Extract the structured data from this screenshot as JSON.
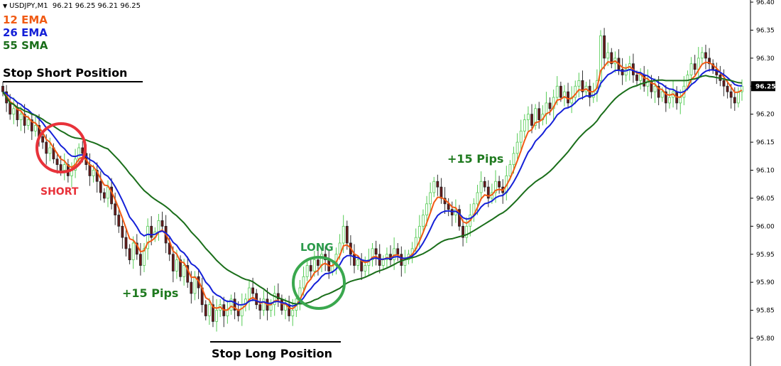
{
  "header": {
    "symbol": "USDJPY,M1",
    "ohlc": "96.21 96.25 96.21 96.25"
  },
  "legend": [
    {
      "label": "12 EMA",
      "color": "#f05a14"
    },
    {
      "label": "26 EMA",
      "color": "#1420d8"
    },
    {
      "label": "55 SMA",
      "color": "#1a6e1a"
    }
  ],
  "annotations": {
    "stop_short": "Stop Short Position",
    "short": "SHORT",
    "pips_left": "+15 Pips",
    "long": "LONG",
    "stop_long": "Stop Long Position",
    "pips_right": "+15 Pips"
  },
  "colors": {
    "bull": "#55cc55",
    "bear": "#6a1a1a",
    "short_circle": "#e8323a",
    "long_circle": "#3aa84e"
  },
  "chart_data": {
    "type": "candlestick",
    "ylim": [
      95.75,
      96.4
    ],
    "y_ticks": [
      "96.40",
      "96.35",
      "96.30",
      "96.25",
      "96.20",
      "96.15",
      "96.10",
      "96.05",
      "96.00",
      "95.95",
      "95.90",
      "95.85",
      "95.80"
    ],
    "current_price": "96.25",
    "closes": [
      96.24,
      96.22,
      96.2,
      96.21,
      96.19,
      96.2,
      96.18,
      96.19,
      96.17,
      96.18,
      96.16,
      96.15,
      96.13,
      96.14,
      96.12,
      96.11,
      96.1,
      96.11,
      96.09,
      96.1,
      96.12,
      96.14,
      96.13,
      96.11,
      96.09,
      96.1,
      96.08,
      96.06,
      96.05,
      96.07,
      96.04,
      96.02,
      96.0,
      95.98,
      95.96,
      95.94,
      95.97,
      95.95,
      95.93,
      95.96,
      96.0,
      95.98,
      95.99,
      96.01,
      96.0,
      95.97,
      95.95,
      95.92,
      95.94,
      95.91,
      95.93,
      95.9,
      95.88,
      95.91,
      95.89,
      95.86,
      95.84,
      95.86,
      95.83,
      95.85,
      95.86,
      95.84,
      95.85,
      95.87,
      95.85,
      95.84,
      95.86,
      95.87,
      95.89,
      95.88,
      95.86,
      95.85,
      95.87,
      95.85,
      95.86,
      95.88,
      95.87,
      95.85,
      95.86,
      95.84,
      95.85,
      95.87,
      95.89,
      95.91,
      95.93,
      95.92,
      95.94,
      95.93,
      95.95,
      95.94,
      95.92,
      95.93,
      95.95,
      95.97,
      96.0,
      95.97,
      95.95,
      95.93,
      95.94,
      95.92,
      95.93,
      95.94,
      95.96,
      95.95,
      95.93,
      95.94,
      95.95,
      95.94,
      95.96,
      95.95,
      95.93,
      95.94,
      95.95,
      95.96,
      95.98,
      96.0,
      96.02,
      96.04,
      96.06,
      96.08,
      96.07,
      96.05,
      96.04,
      96.03,
      96.02,
      96.03,
      96.0,
      95.98,
      96.0,
      96.02,
      96.04,
      96.06,
      96.08,
      96.07,
      96.05,
      96.06,
      96.08,
      96.07,
      96.06,
      96.09,
      96.11,
      96.13,
      96.15,
      96.17,
      96.19,
      96.2,
      96.18,
      96.21,
      96.19,
      96.2,
      96.22,
      96.21,
      96.23,
      96.25,
      96.23,
      96.24,
      96.22,
      96.23,
      96.25,
      96.26,
      96.24,
      96.25,
      96.23,
      96.24,
      96.26,
      96.34,
      96.3,
      96.31,
      96.29,
      96.3,
      96.28,
      96.27,
      96.28,
      96.29,
      96.27,
      96.26,
      96.27,
      96.25,
      96.26,
      96.24,
      96.25,
      96.23,
      96.24,
      96.22,
      96.23,
      96.24,
      96.22,
      96.23,
      96.25,
      96.27,
      96.29,
      96.28,
      96.3,
      96.31,
      96.3,
      96.29,
      96.28,
      96.27,
      96.26,
      96.25,
      96.24,
      96.23,
      96.22,
      96.24,
      96.25
    ],
    "series": [
      {
        "name": "12 EMA"
      },
      {
        "name": "26 EMA"
      },
      {
        "name": "55 SMA"
      }
    ]
  }
}
